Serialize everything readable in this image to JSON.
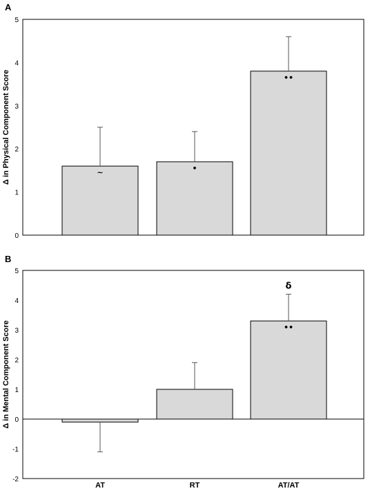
{
  "chart_data": [
    {
      "panel": "A",
      "type": "bar",
      "categories": [
        "AT",
        "RT",
        "AT/AT"
      ],
      "values": [
        1.6,
        1.7,
        3.8
      ],
      "error": [
        0.9,
        0.7,
        0.8
      ],
      "markers": [
        "~",
        "•",
        "••"
      ],
      "annotations": [
        "",
        "",
        ""
      ],
      "ylabel": "Δ in Physical Component Score",
      "ylim": [
        0,
        5
      ],
      "yticks": [
        0,
        1,
        2,
        3,
        4,
        5
      ],
      "bar_color": "#d9d9d9",
      "show_category_labels": false
    },
    {
      "panel": "B",
      "type": "bar",
      "categories": [
        "AT",
        "RT",
        "AT/AT"
      ],
      "values": [
        -0.1,
        1.0,
        3.3
      ],
      "error": [
        1.0,
        0.9,
        0.9
      ],
      "markers": [
        "",
        "",
        "••"
      ],
      "annotations": [
        "",
        "",
        "δ"
      ],
      "ylabel": "Δ in Mental Component Score",
      "ylim": [
        -2,
        5
      ],
      "yticks": [
        -2,
        -1,
        0,
        1,
        2,
        3,
        4,
        5
      ],
      "bar_color": "#d9d9d9",
      "show_category_labels": true
    }
  ]
}
